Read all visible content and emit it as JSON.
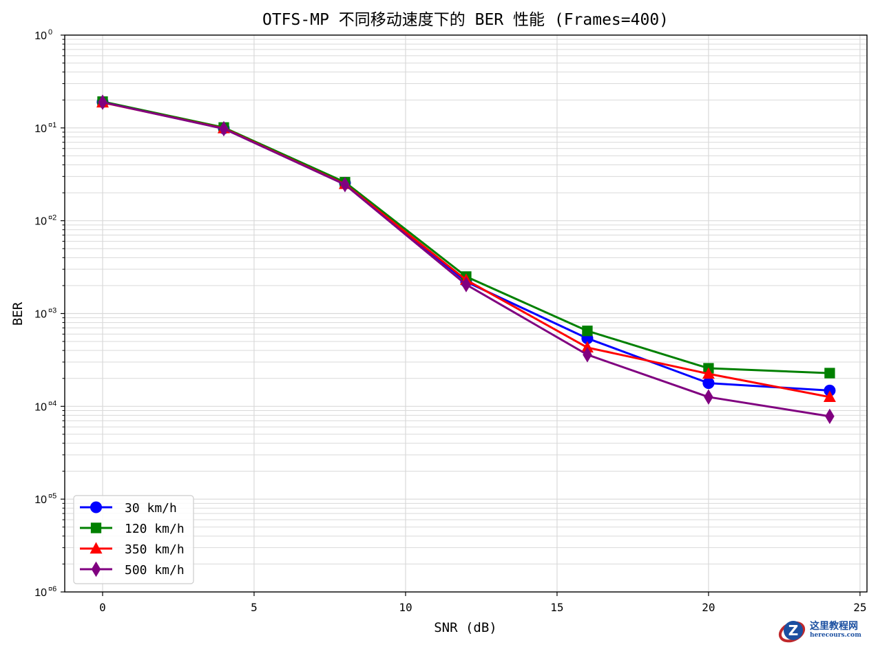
{
  "chart_data": {
    "type": "line",
    "title": "OTFS-MP 不同移动速度下的 BER 性能 (Frames=400)",
    "xlabel": "SNR (dB)",
    "ylabel": "BER",
    "xscale": "linear",
    "yscale": "log",
    "xlim": [
      -1.25,
      25.23
    ],
    "ylim": [
      1e-06,
      1
    ],
    "xticks": [
      0,
      5,
      10,
      15,
      20,
      25
    ],
    "xtick_labels": [
      "0",
      "5",
      "10",
      "15",
      "20",
      "25"
    ],
    "yticks": [
      1,
      0.1,
      0.01,
      0.001,
      0.0001,
      1e-05,
      1e-06
    ],
    "ytick_labels": [
      {
        "base": "10",
        "exp": "0"
      },
      {
        "base": "10",
        "exp": "¤1"
      },
      {
        "base": "10",
        "exp": "¤2"
      },
      {
        "base": "10",
        "exp": "¤3"
      },
      {
        "base": "10",
        "exp": "¤4"
      },
      {
        "base": "10",
        "exp": "¤5"
      },
      {
        "base": "10",
        "exp": "¤6"
      }
    ],
    "grid": true,
    "grid_minor": true,
    "legend_position": "lower left",
    "x": [
      0,
      4,
      8,
      12,
      16,
      20,
      24
    ],
    "series": [
      {
        "name": "30 km/h",
        "color": "#0000ff",
        "marker": "circle",
        "values": [
          0.19,
          0.099,
          0.0255,
          0.0022,
          0.00054,
          0.000178,
          0.000148
        ]
      },
      {
        "name": "120 km/h",
        "color": "#008000",
        "marker": "square",
        "values": [
          0.192,
          0.101,
          0.026,
          0.0025,
          0.00065,
          0.000257,
          0.000228
        ]
      },
      {
        "name": "350 km/h",
        "color": "#ff0000",
        "marker": "triangle",
        "values": [
          0.188,
          0.099,
          0.0248,
          0.0023,
          0.00043,
          0.000224,
          0.000126
        ]
      },
      {
        "name": "500 km/h",
        "color": "#800080",
        "marker": "diamond",
        "values": [
          0.189,
          0.098,
          0.0245,
          0.00205,
          0.00036,
          0.000126,
          7.8e-05
        ]
      }
    ]
  },
  "watermark": {
    "cn": "这里教程网",
    "en": "herecours.com"
  }
}
